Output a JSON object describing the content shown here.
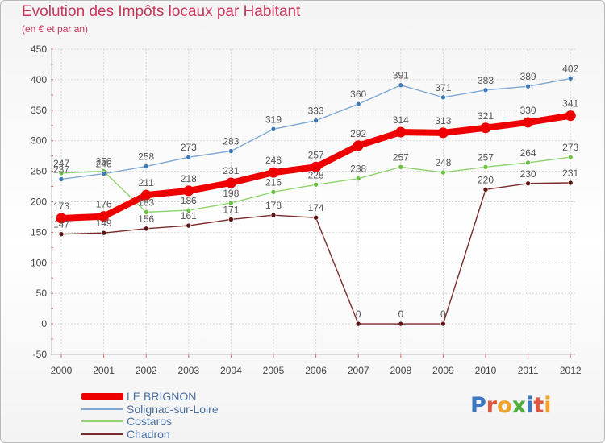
{
  "title": "Evolution des Impôts locaux par Habitant",
  "subtitle": "(en € et par an)",
  "logo": {
    "text": "Proxiti",
    "letter_colors": [
      "#3a78c2",
      "#e0553c",
      "#f2a32c",
      "#4fae3c",
      "#3a78c2",
      "#e0553c",
      "#f2a32c"
    ]
  },
  "chart_data": {
    "type": "line",
    "title": "Evolution des Impôts locaux par Habitant",
    "subtitle": "(en € et par an)",
    "xlabel": "",
    "ylabel": "",
    "ylim": [
      -50,
      450
    ],
    "yticks": [
      -50,
      0,
      50,
      100,
      150,
      200,
      250,
      300,
      350,
      400,
      450
    ],
    "grid": true,
    "legend_position": "bottom-left",
    "categories": [
      "2000",
      "2001",
      "2002",
      "2003",
      "2004",
      "2005",
      "2006",
      "2007",
      "2008",
      "2009",
      "2010",
      "2011",
      "2012"
    ],
    "series": [
      {
        "name": "Chadron",
        "color": "#7a2a2a",
        "marker": "#5c1414",
        "width": 1.4,
        "values": [
          147,
          149,
          156,
          161,
          171,
          178,
          174,
          0,
          0,
          0,
          220,
          230,
          231
        ]
      },
      {
        "name": "Costaros",
        "color": "#8fd46e",
        "marker": "#6cc043",
        "width": 1.4,
        "values": [
          247,
          250,
          183,
          186,
          198,
          216,
          228,
          238,
          257,
          248,
          257,
          264,
          273
        ]
      },
      {
        "name": "Solignac-sur-Loire",
        "color": "#7fa8d4",
        "marker": "#3d7ab8",
        "width": 1.4,
        "values": [
          237,
          246,
          258,
          273,
          283,
          319,
          333,
          360,
          391,
          371,
          383,
          389,
          402
        ]
      },
      {
        "name": "LE BRIGNON",
        "color": "#ee0000",
        "marker": "#ee0000",
        "width": 8,
        "values": [
          173,
          176,
          211,
          218,
          231,
          248,
          257,
          292,
          314,
          313,
          321,
          330,
          341
        ]
      }
    ]
  },
  "legend": [
    {
      "label": "LE BRIGNON",
      "color": "#ee0000",
      "thickness": 8
    },
    {
      "label": "Solignac-sur-Loire",
      "color": "#7fa8d4",
      "thickness": 2
    },
    {
      "label": "Costaros",
      "color": "#8fd46e",
      "thickness": 2
    },
    {
      "label": "Chadron",
      "color": "#7a2a2a",
      "thickness": 2
    }
  ]
}
